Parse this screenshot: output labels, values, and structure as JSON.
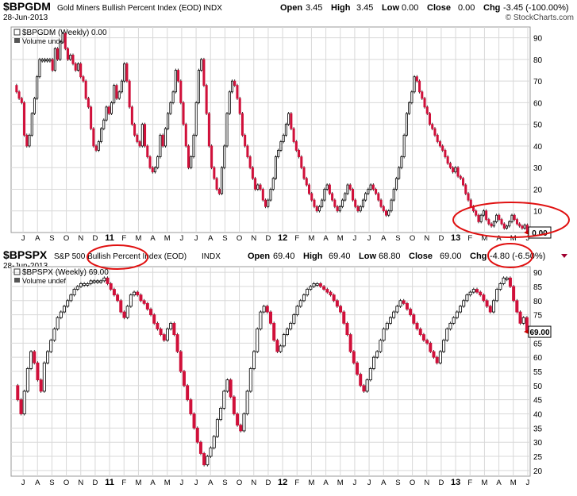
{
  "colors": {
    "up": "#ffffff",
    "down": "#d0103a",
    "annotation": "#e01010",
    "grid": "#d8d8d8",
    "frame": "#999999"
  },
  "panels": [
    {
      "symbol": "$BPGDM",
      "name": "Gold Miners Bullish Percent Index (EOD)",
      "exchange": "INDX",
      "date": "28-Jun-2013",
      "watermark": "© StockCharts.com",
      "quote": {
        "open_label": "Open",
        "open": "3.45",
        "high_label": "High",
        "high": "3.45",
        "low_label": "Low",
        "low": "0.00",
        "close_label": "Close",
        "close": "0.00",
        "chg_label": "Chg",
        "chg": "-3.45 (-100.00%)"
      },
      "legend_primary": "$BPGDM (Weekly) 0.00",
      "legend_volume": "Volume undef",
      "last_value": "0.00",
      "y_ticks": [
        "10",
        "20",
        "30",
        "40",
        "50",
        "60",
        "70",
        "80",
        "90"
      ],
      "x_labels": [
        "J",
        "A",
        "S",
        "O",
        "N",
        "D",
        "11",
        "F",
        "M",
        "A",
        "M",
        "J",
        "J",
        "A",
        "S",
        "O",
        "N",
        "D",
        "12",
        "F",
        "M",
        "A",
        "M",
        "J",
        "J",
        "A",
        "S",
        "O",
        "N",
        "D",
        "13",
        "F",
        "M",
        "A",
        "M",
        "J"
      ]
    },
    {
      "symbol": "$BPSPX",
      "name": "S&P 500 Bullish Percent Index (EOD)",
      "exchange": "INDX",
      "date": "28-Jun-2013",
      "watermark": "",
      "quote": {
        "open_label": "Open",
        "open": "69.40",
        "high_label": "High",
        "high": "69.40",
        "low_label": "Low",
        "low": "68.80",
        "close_label": "Close",
        "close": "69.00",
        "chg_label": "Chg",
        "chg": "-4.80 (-6.50%)"
      },
      "legend_primary": "$BPSPX (Weekly) 69.00",
      "legend_volume": "Volume undef",
      "last_value": "69.00",
      "y_ticks": [
        "20",
        "25",
        "30",
        "35",
        "40",
        "45",
        "50",
        "55",
        "60",
        "65",
        "70",
        "75",
        "80",
        "85",
        "90"
      ],
      "x_labels": [
        "J",
        "A",
        "S",
        "O",
        "N",
        "D",
        "11",
        "F",
        "M",
        "A",
        "M",
        "J",
        "J",
        "A",
        "S",
        "O",
        "N",
        "D",
        "12",
        "F",
        "M",
        "A",
        "M",
        "J",
        "J",
        "A",
        "S",
        "O",
        "N",
        "D",
        "13",
        "F",
        "M",
        "A",
        "M",
        "J"
      ]
    }
  ],
  "chart_data": [
    {
      "type": "candlestick",
      "title": "$BPGDM Gold Miners Bullish Percent Index (EOD)",
      "interval": "weekly",
      "x_start": "2010-06",
      "x_end": "2013-06",
      "ylim": [
        0,
        95
      ],
      "closes": [
        68,
        65,
        62,
        60,
        45,
        40,
        45,
        55,
        62,
        72,
        80,
        80,
        80,
        80,
        80,
        75,
        85,
        80,
        88,
        92,
        85,
        80,
        82,
        78,
        75,
        78,
        72,
        70,
        62,
        58,
        48,
        40,
        38,
        42,
        48,
        52,
        58,
        55,
        60,
        68,
        62,
        65,
        70,
        78,
        70,
        58,
        50,
        45,
        42,
        40,
        50,
        40,
        35,
        30,
        28,
        30,
        35,
        45,
        40,
        48,
        55,
        60,
        65,
        75,
        70,
        60,
        50,
        40,
        30,
        35,
        45,
        60,
        75,
        80,
        68,
        55,
        40,
        30,
        25,
        20,
        18,
        30,
        40,
        55,
        65,
        70,
        68,
        62,
        55,
        45,
        40,
        35,
        30,
        25,
        20,
        22,
        20,
        15,
        12,
        15,
        20,
        25,
        35,
        38,
        42,
        45,
        50,
        55,
        48,
        42,
        38,
        35,
        30,
        25,
        22,
        18,
        15,
        12,
        10,
        12,
        15,
        20,
        22,
        18,
        15,
        12,
        10,
        12,
        15,
        18,
        22,
        20,
        15,
        12,
        10,
        12,
        15,
        18,
        20,
        22,
        20,
        18,
        15,
        12,
        10,
        8,
        10,
        15,
        20,
        25,
        30,
        35,
        45,
        55,
        60,
        65,
        72,
        70,
        65,
        62,
        58,
        55,
        50,
        48,
        45,
        42,
        40,
        38,
        35,
        32,
        30,
        28,
        30,
        26,
        25,
        22,
        18,
        15,
        12,
        10,
        8,
        5,
        8,
        10,
        6,
        4,
        3,
        5,
        8,
        6,
        4,
        2,
        3,
        5,
        8,
        6,
        4,
        3,
        2,
        3.45,
        0
      ]
    },
    {
      "type": "candlestick",
      "title": "$BPSPX S&P 500 Bullish Percent Index (EOD)",
      "interval": "weekly",
      "x_start": "2010-06",
      "x_end": "2013-06",
      "ylim": [
        18,
        92
      ],
      "closes": [
        50,
        45,
        40,
        48,
        56,
        62,
        58,
        52,
        48,
        58,
        62,
        66,
        70,
        74,
        76,
        78,
        80,
        82,
        84,
        85,
        86,
        86,
        86,
        87,
        87,
        87,
        87,
        88,
        86,
        84,
        82,
        80,
        76,
        74,
        78,
        82,
        83,
        82,
        80,
        79,
        77,
        75,
        72,
        70,
        68,
        66,
        70,
        72,
        68,
        62,
        55,
        50,
        45,
        40,
        35,
        30,
        26,
        22,
        25,
        28,
        32,
        38,
        42,
        48,
        52,
        46,
        40,
        36,
        34,
        40,
        48,
        56,
        62,
        70,
        76,
        78,
        76,
        72,
        66,
        62,
        64,
        68,
        70,
        72,
        75,
        78,
        80,
        82,
        84,
        85,
        86,
        86,
        85,
        84,
        83,
        82,
        80,
        78,
        76,
        72,
        68,
        62,
        58,
        54,
        50,
        48,
        52,
        56,
        60,
        62,
        66,
        70,
        72,
        74,
        76,
        78,
        80,
        79,
        77,
        75,
        72,
        70,
        68,
        66,
        65,
        62,
        60,
        58,
        62,
        66,
        70,
        72,
        74,
        76,
        78,
        80,
        82,
        83,
        84,
        83,
        82,
        80,
        78,
        76,
        80,
        84,
        86,
        88,
        88,
        85,
        80,
        76,
        72,
        74,
        69
      ]
    }
  ]
}
